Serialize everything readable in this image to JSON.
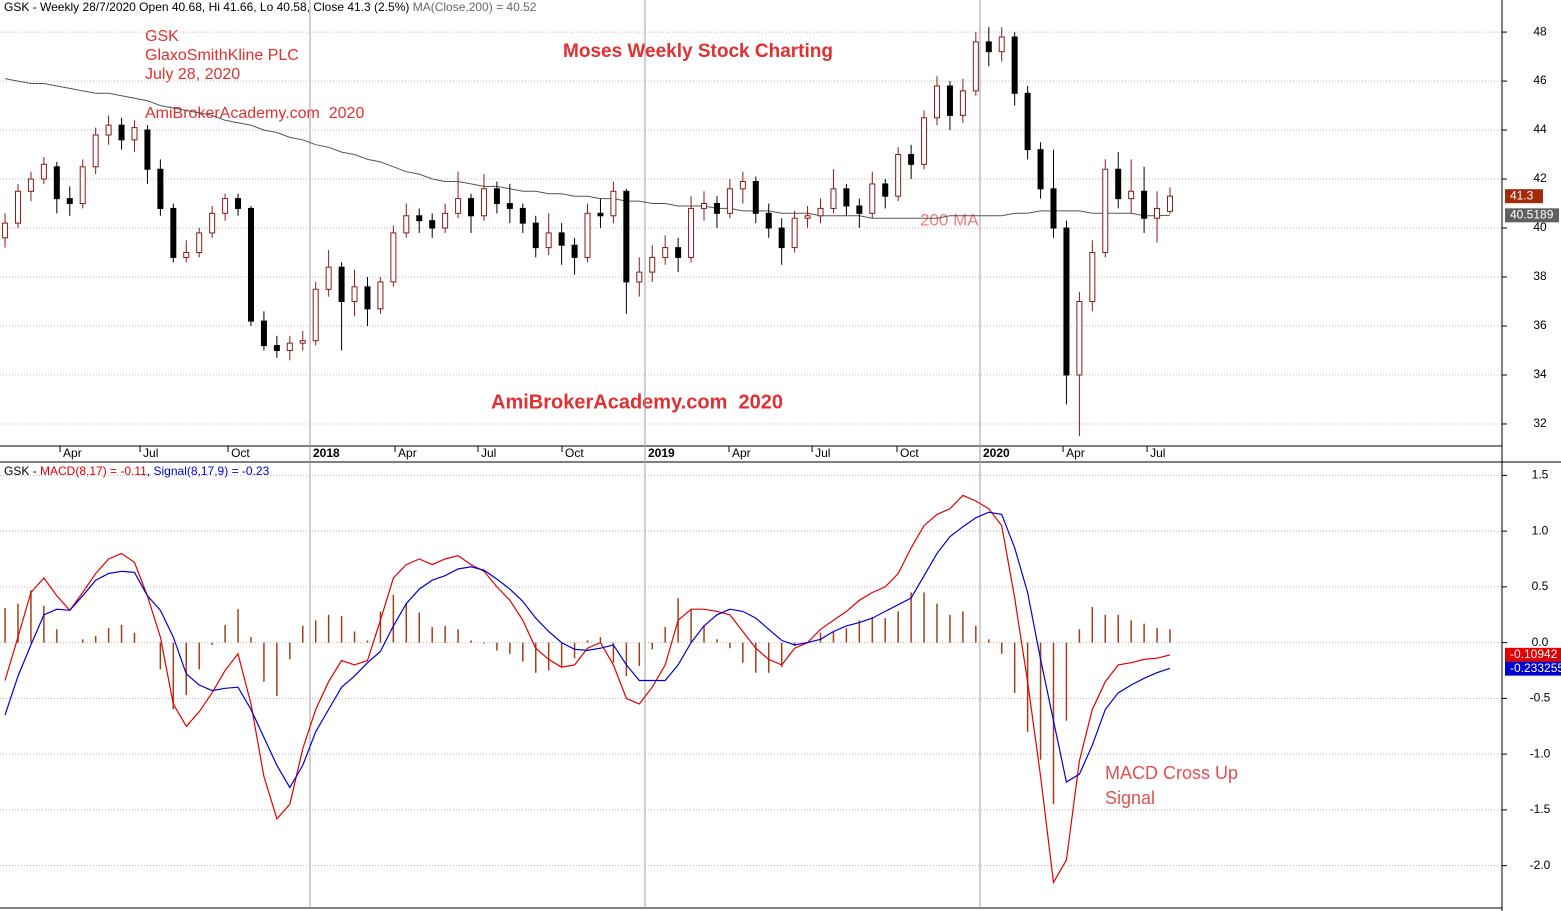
{
  "chart_data": [
    {
      "type": "candlestick",
      "title": "Moses Weekly Stock Charting",
      "header": [
        "GSK - Weekly 28/7/2020 Open 40.68, Hi 41.66, Lo 40.58, Close 41.3 (2.5%) ",
        "MA(Close,200) = 40.52"
      ],
      "annotations": [
        "GSK",
        "GlaxoSmithKline PLC",
        "July 28, 2020",
        "AmiBrokerAcademy.com  2020",
        "AmiBrokerAcademy.com  2020",
        "200 MA"
      ],
      "up_color": "#8b1a1a",
      "down_color": "#000000",
      "candles": [
        [
          39.6,
          40.6,
          39.2,
          40.2
        ],
        [
          40.2,
          41.8,
          40,
          41.5
        ],
        [
          41.5,
          42.3,
          41.1,
          42
        ],
        [
          42,
          42.9,
          41.8,
          42.6
        ],
        [
          42.5,
          42.7,
          40.6,
          41.2
        ],
        [
          41.2,
          41.7,
          40.5,
          41
        ],
        [
          41,
          42.8,
          40.8,
          42.5
        ],
        [
          42.5,
          44.1,
          42.2,
          43.8
        ],
        [
          43.8,
          44.6,
          43.4,
          44.2
        ],
        [
          44.2,
          44.5,
          43.2,
          43.6
        ],
        [
          43.6,
          44.4,
          43.1,
          44.1
        ],
        [
          44,
          44.2,
          41.8,
          42.4
        ],
        [
          42.4,
          42.8,
          40.5,
          40.8
        ],
        [
          40.8,
          41,
          38.6,
          38.8
        ],
        [
          38.8,
          39.5,
          38.6,
          39
        ],
        [
          39,
          40,
          38.8,
          39.8
        ],
        [
          39.8,
          40.9,
          39.6,
          40.6
        ],
        [
          40.6,
          41.4,
          40.3,
          41.2
        ],
        [
          41.2,
          41.4,
          40.5,
          40.8
        ],
        [
          40.8,
          40.9,
          36,
          36.2
        ],
        [
          36.2,
          36.6,
          35,
          35.2
        ],
        [
          35.2,
          35.6,
          34.7,
          35
        ],
        [
          35,
          35.6,
          34.6,
          35.3
        ],
        [
          35.3,
          35.8,
          35,
          35.4
        ],
        [
          35.4,
          37.8,
          35.2,
          37.5
        ],
        [
          37.5,
          39.1,
          37.2,
          38.4
        ],
        [
          38.4,
          38.6,
          35,
          37
        ],
        [
          37,
          38.3,
          36.4,
          37.6
        ],
        [
          37.6,
          38,
          36,
          36.7
        ],
        [
          36.7,
          38,
          36.5,
          37.8
        ],
        [
          37.8,
          40.1,
          37.6,
          39.8
        ],
        [
          39.8,
          41,
          39.6,
          40.5
        ],
        [
          40.5,
          40.8,
          39.8,
          40.3
        ],
        [
          40.3,
          40.6,
          39.6,
          40
        ],
        [
          40,
          41,
          39.8,
          40.6
        ],
        [
          40.6,
          42.3,
          40.4,
          41.2
        ],
        [
          41.2,
          41.4,
          39.8,
          40.5
        ],
        [
          40.5,
          42.2,
          40.3,
          41.6
        ],
        [
          41.6,
          41.9,
          40.6,
          41
        ],
        [
          41,
          41.8,
          40.2,
          40.8
        ],
        [
          40.8,
          41,
          39.8,
          40.2
        ],
        [
          40.2,
          40.5,
          38.8,
          39.2
        ],
        [
          39.2,
          40.6,
          38.9,
          39.8
        ],
        [
          39.8,
          40.2,
          38.5,
          39.3
        ],
        [
          39.3,
          39.6,
          38.1,
          38.8
        ],
        [
          38.8,
          41,
          38.6,
          40.6
        ],
        [
          40.6,
          41.2,
          40,
          40.5
        ],
        [
          40.5,
          41.9,
          40.2,
          41.5
        ],
        [
          41.5,
          41.6,
          36.5,
          37.8
        ],
        [
          37.8,
          38.8,
          37.2,
          38.2
        ],
        [
          38.2,
          39.3,
          37.8,
          38.8
        ],
        [
          38.8,
          39.7,
          38.5,
          39.2
        ],
        [
          39.2,
          39.6,
          38.2,
          38.8
        ],
        [
          38.8,
          41.3,
          38.6,
          40.8
        ],
        [
          40.8,
          41.5,
          40.3,
          41
        ],
        [
          41,
          41.3,
          40,
          40.6
        ],
        [
          40.6,
          42,
          40.4,
          41.6
        ],
        [
          41.6,
          42.3,
          41,
          41.9
        ],
        [
          41.9,
          42.1,
          40.2,
          40.6
        ],
        [
          40.6,
          41,
          39.6,
          40
        ],
        [
          40,
          40.4,
          38.5,
          39.2
        ],
        [
          39.2,
          40.7,
          39,
          40.4
        ],
        [
          40.4,
          40.9,
          40,
          40.5
        ],
        [
          40.5,
          41.2,
          40.2,
          40.8
        ],
        [
          40.8,
          42.4,
          40.6,
          41.6
        ],
        [
          41.6,
          41.8,
          40.5,
          40.9
        ],
        [
          40.9,
          41.2,
          40,
          40.6
        ],
        [
          40.6,
          42.3,
          40.4,
          41.8
        ],
        [
          41.8,
          42,
          40.8,
          41.3
        ],
        [
          41.3,
          43.3,
          41.1,
          43
        ],
        [
          43,
          43.4,
          42,
          42.6
        ],
        [
          42.6,
          44.8,
          42.4,
          44.5
        ],
        [
          44.5,
          46.2,
          44.2,
          45.8
        ],
        [
          45.8,
          46,
          44,
          44.6
        ],
        [
          44.6,
          46.1,
          44.3,
          45.6
        ],
        [
          45.6,
          48,
          45.4,
          47.6
        ],
        [
          47.6,
          48.2,
          46.6,
          47.2
        ],
        [
          47.2,
          48.2,
          46.8,
          47.8
        ],
        [
          47.8,
          48,
          45,
          45.5
        ],
        [
          45.5,
          45.8,
          42.8,
          43.2
        ],
        [
          43.2,
          43.5,
          41.2,
          41.6
        ],
        [
          41.6,
          43.2,
          39.6,
          40
        ],
        [
          40,
          40.3,
          32.8,
          34
        ],
        [
          34,
          37.4,
          31.5,
          37
        ],
        [
          37,
          39.5,
          36.6,
          39
        ],
        [
          39,
          42.8,
          38.8,
          42.4
        ],
        [
          42.4,
          43.1,
          40.8,
          41.2
        ],
        [
          41.2,
          42.8,
          40.6,
          41.5
        ],
        [
          41.5,
          42.5,
          39.8,
          40.4
        ],
        [
          40.4,
          41.5,
          39.4,
          40.8
        ],
        [
          40.68,
          41.66,
          40.58,
          41.3
        ]
      ],
      "ma": {
        "color": "#555555",
        "values": [
          46.1,
          46.0,
          45.9,
          45.9,
          45.8,
          45.7,
          45.6,
          45.5,
          45.5,
          45.4,
          45.3,
          45.2,
          45.0,
          44.9,
          44.8,
          44.7,
          44.6,
          44.4,
          44.3,
          44.2,
          44.0,
          43.9,
          43.7,
          43.6,
          43.4,
          43.3,
          43.1,
          43.0,
          42.8,
          42.7,
          42.5,
          42.3,
          42.2,
          42.0,
          41.9,
          41.9,
          41.8,
          41.7,
          41.7,
          41.6,
          41.5,
          41.5,
          41.4,
          41.4,
          41.3,
          41.3,
          41.2,
          41.2,
          41.1,
          41.1,
          41.0,
          41.0,
          40.9,
          40.9,
          40.9,
          40.8,
          40.8,
          40.7,
          40.7,
          40.7,
          40.6,
          40.6,
          40.6,
          40.5,
          40.5,
          40.5,
          40.5,
          40.4,
          40.4,
          40.4,
          40.4,
          40.4,
          40.4,
          40.5,
          40.5,
          40.5,
          40.5,
          40.5,
          40.6,
          40.6,
          40.7,
          40.7,
          40.7,
          40.7,
          40.6,
          40.6,
          40.6,
          40.6,
          40.5,
          40.5,
          40.52
        ]
      },
      "price_badge": 41.3,
      "ma_badge": 40.5189,
      "xlim": [
        -0.39,
        115.65
      ],
      "xticks": [
        {
          "value": 4.25,
          "label": "Apr"
        },
        {
          "value": 10.43,
          "label": "Jul"
        },
        {
          "value": 17.23,
          "label": "Oct"
        },
        {
          "value": 23.56,
          "label": "2018"
        },
        {
          "value": 30.13,
          "label": "Apr"
        },
        {
          "value": 36.54,
          "label": "Jul"
        },
        {
          "value": 43.03,
          "label": "Oct"
        },
        {
          "value": 49.44,
          "label": "2019"
        },
        {
          "value": 55.93,
          "label": "Apr"
        },
        {
          "value": 62.35,
          "label": "Jul"
        },
        {
          "value": 68.91,
          "label": "Oct"
        },
        {
          "value": 75.32,
          "label": "2020"
        },
        {
          "value": 81.74,
          "label": "Apr"
        },
        {
          "value": 88.23,
          "label": "Jul"
        }
      ],
      "ylim": [
        31.1,
        49.31
      ],
      "yticks": [
        32,
        34,
        36,
        38,
        40,
        42,
        44,
        46,
        48
      ],
      "grid": true
    },
    {
      "type": "macd",
      "header": [
        "GSK - ",
        "MACD(8,17) = -0.11",
        ", ",
        "Signal(8,17,9) = -0.23"
      ],
      "annotations": [
        "MACD Cross Up",
        "Signal"
      ],
      "xlim": [
        -0.39,
        115.65
      ],
      "ylim": [
        -2.38,
        1.62
      ],
      "yticks": [
        {
          "value": -2,
          "label": "-2.0"
        },
        -1.5,
        {
          "value": -1,
          "label": "-1.0"
        },
        -0.5,
        {
          "value": 0,
          "label": "0.0"
        },
        0.5,
        {
          "value": 1,
          "label": "1.0"
        },
        1.5
      ],
      "grid": true,
      "series": [
        {
          "color": "#e00000",
          "values": [
            -0.34,
            0.05,
            0.45,
            0.58,
            0.42,
            0.29,
            0.45,
            0.62,
            0.75,
            0.8,
            0.72,
            0.42,
            0.05,
            -0.55,
            -0.75,
            -0.62,
            -0.45,
            -0.25,
            -0.1,
            -0.55,
            -1.2,
            -1.58,
            -1.45,
            -0.95,
            -0.6,
            -0.35,
            -0.16,
            -0.2,
            -0.16,
            0.2,
            0.58,
            0.7,
            0.75,
            0.7,
            0.75,
            0.78,
            0.7,
            0.64,
            0.5,
            0.38,
            0.2,
            -0.05,
            -0.15,
            -0.22,
            -0.2,
            -0.05,
            0.0,
            -0.2,
            -0.5,
            -0.55,
            -0.4,
            -0.2,
            0.2,
            0.3,
            0.3,
            0.28,
            0.25,
            0.1,
            -0.05,
            -0.15,
            -0.2,
            -0.05,
            0.0,
            0.12,
            0.2,
            0.28,
            0.38,
            0.45,
            0.5,
            0.62,
            0.85,
            1.05,
            1.15,
            1.2,
            1.32,
            1.27,
            1.2,
            1.05,
            0.4,
            -0.35,
            -1.2,
            -2.15,
            -1.95,
            -1.06,
            -0.6,
            -0.35,
            -0.2,
            -0.18,
            -0.15,
            -0.14,
            -0.11
          ]
        },
        {
          "color": "#0000d0",
          "values": [
            -0.65,
            -0.3,
            -0.02,
            0.25,
            0.3,
            0.29,
            0.42,
            0.56,
            0.62,
            0.64,
            0.63,
            0.42,
            0.29,
            0.05,
            -0.28,
            -0.38,
            -0.43,
            -0.41,
            -0.4,
            -0.6,
            -0.85,
            -1.1,
            -1.3,
            -1.1,
            -0.8,
            -0.6,
            -0.4,
            -0.3,
            -0.18,
            -0.08,
            0.15,
            0.35,
            0.48,
            0.56,
            0.6,
            0.66,
            0.68,
            0.65,
            0.57,
            0.48,
            0.37,
            0.22,
            0.1,
            0.0,
            -0.06,
            -0.07,
            -0.05,
            -0.02,
            -0.2,
            -0.34,
            -0.34,
            -0.34,
            -0.2,
            0.0,
            0.15,
            0.25,
            0.3,
            0.28,
            0.22,
            0.12,
            0.02,
            -0.02,
            0.0,
            0.03,
            0.1,
            0.15,
            0.18,
            0.22,
            0.28,
            0.34,
            0.4,
            0.6,
            0.8,
            0.95,
            1.04,
            1.12,
            1.17,
            1.15,
            0.85,
            0.45,
            -0.15,
            -0.7,
            -1.25,
            -1.18,
            -0.92,
            -0.6,
            -0.45,
            -0.38,
            -0.32,
            -0.27,
            -0.23
          ]
        }
      ],
      "histogram": {
        "color": "#a0401a",
        "values": [
          0.31,
          0.35,
          0.47,
          0.33,
          0.12,
          0.0,
          0.03,
          0.06,
          0.13,
          0.16,
          0.09,
          0.0,
          -0.24,
          -0.6,
          -0.47,
          -0.24,
          -0.02,
          0.16,
          0.3,
          0.05,
          -0.35,
          -0.48,
          -0.15,
          0.15,
          0.2,
          0.25,
          0.24,
          0.1,
          0.02,
          0.28,
          0.43,
          0.35,
          0.27,
          0.14,
          0.15,
          0.12,
          0.02,
          -0.01,
          -0.07,
          -0.1,
          -0.17,
          -0.27,
          -0.25,
          -0.22,
          -0.14,
          0.02,
          0.05,
          -0.18,
          -0.3,
          -0.21,
          -0.06,
          0.14,
          0.4,
          0.3,
          0.15,
          0.03,
          -0.05,
          -0.18,
          -0.27,
          -0.27,
          -0.22,
          -0.03,
          0.0,
          0.09,
          0.1,
          0.13,
          0.2,
          0.23,
          0.22,
          0.28,
          0.45,
          0.45,
          0.35,
          0.25,
          0.28,
          0.15,
          0.03,
          -0.1,
          -0.45,
          -0.8,
          -1.05,
          -1.45,
          -0.7,
          0.12,
          0.32,
          0.25,
          0.25,
          0.2,
          0.17,
          0.13,
          0.12
        ]
      },
      "macd_badge": -0.10942,
      "signal_badge": -0.233255
    }
  ]
}
